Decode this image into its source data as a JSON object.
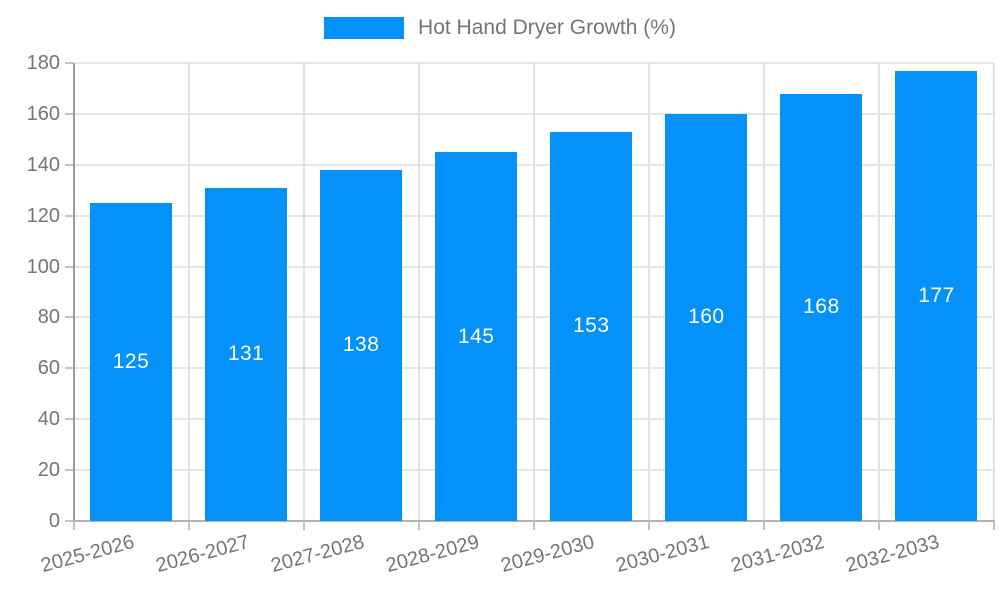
{
  "legend": {
    "label": "Hot Hand Dryer Growth (%)",
    "swatch_color": "#0591fa"
  },
  "chart_data": {
    "type": "bar",
    "title": "Hot Hand Dryer Growth (%)",
    "categories": [
      "2025-2026",
      "2026-2027",
      "2027-2028",
      "2028-2029",
      "2029-2030",
      "2030-2031",
      "2031-2032",
      "2032-2033"
    ],
    "values": [
      125,
      131,
      138,
      145,
      153,
      160,
      168,
      177
    ],
    "xlabel": "",
    "ylabel": "",
    "ylim": [
      0,
      180
    ],
    "ytick_interval": 20,
    "grid": true,
    "legend_position": "top",
    "x_label_rotation_deg": -15,
    "bar_color": "#0591fa",
    "value_label_color": "#ffffff"
  },
  "colors": {
    "text": "#757575",
    "grid_line": "#e7e7e7",
    "axis_line": "#9a9a9a",
    "tick": "#c2c2c2",
    "background": "#ffffff"
  }
}
